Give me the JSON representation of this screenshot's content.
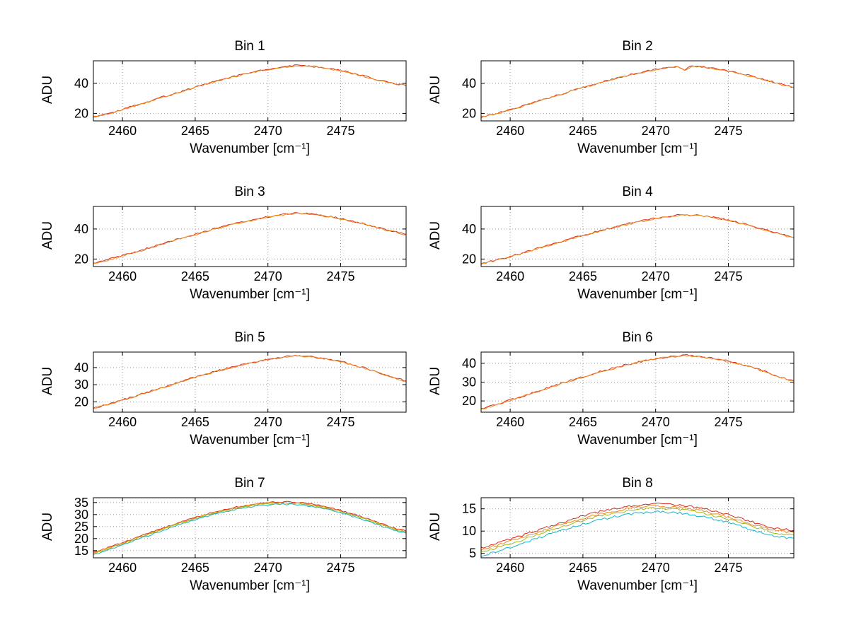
{
  "figure": {
    "background": "#ffffff",
    "grid_style": "dotted",
    "axis_color": "#000000",
    "grid_color": "#999999"
  },
  "chart_data": [
    {
      "type": "line",
      "title": "Bin 1",
      "xlabel": "Wavenumber [cm⁻¹]",
      "ylabel": "ADU",
      "xlim": [
        2458,
        2479.5
      ],
      "ylim": [
        15,
        55
      ],
      "x_ticks": [
        2460,
        2465,
        2470,
        2475
      ],
      "y_ticks": [
        20,
        40
      ],
      "grid": true,
      "legend": "none",
      "seed": 1,
      "noise": 0.55,
      "x_start": 2458,
      "x_step": 0.5,
      "base": [
        17.6,
        18.9,
        19.6,
        21.2,
        22.5,
        24.1,
        25.4,
        27.0,
        28.6,
        30.1,
        31.4,
        32.9,
        34.5,
        35.9,
        37.4,
        38.8,
        40.3,
        41.6,
        42.8,
        44.1,
        45.3,
        46.3,
        47.5,
        48.4,
        49.4,
        50.1,
        50.9,
        51.4,
        51.9,
        51.6,
        51.2,
        50.7,
        50.1,
        49.3,
        48.5,
        47.4,
        46.2,
        45.0,
        43.7,
        42.4,
        41.2,
        40.1,
        39.2,
        38.4
      ],
      "series": [
        {
          "name": "trace-red",
          "color": "#d42a1e",
          "offset": 0.12
        },
        {
          "name": "trace-orange",
          "color": "#ee8a1c",
          "offset": -0.12
        }
      ]
    },
    {
      "type": "line",
      "title": "Bin 2",
      "xlabel": "Wavenumber [cm⁻¹]",
      "ylabel": "ADU",
      "xlim": [
        2458,
        2479.5
      ],
      "ylim": [
        15,
        55
      ],
      "x_ticks": [
        2460,
        2465,
        2470,
        2475
      ],
      "y_ticks": [
        20,
        40
      ],
      "grid": true,
      "legend": "none",
      "seed": 2,
      "noise": 0.55,
      "x_start": 2458,
      "x_step": 0.5,
      "base": [
        17.3,
        18.5,
        19.8,
        21.0,
        22.4,
        23.9,
        25.3,
        26.8,
        28.3,
        29.8,
        31.2,
        32.7,
        34.2,
        35.7,
        37.1,
        38.5,
        39.9,
        41.3,
        42.6,
        43.9,
        45.0,
        46.2,
        47.2,
        48.2,
        49.2,
        50.0,
        50.8,
        51.3,
        48.9,
        51.4,
        51.0,
        50.4,
        49.8,
        49.0,
        48.1,
        47.1,
        46.0,
        44.8,
        43.5,
        42.2,
        40.9,
        39.6,
        38.3,
        37.2
      ],
      "series": [
        {
          "name": "trace-red",
          "color": "#d42a1e",
          "offset": 0.12
        },
        {
          "name": "trace-orange",
          "color": "#ee8a1c",
          "offset": -0.12
        }
      ]
    },
    {
      "type": "line",
      "title": "Bin 3",
      "xlabel": "Wavenumber [cm⁻¹]",
      "ylabel": "ADU",
      "xlim": [
        2458,
        2479.5
      ],
      "ylim": [
        15,
        55
      ],
      "x_ticks": [
        2460,
        2465,
        2470,
        2475
      ],
      "y_ticks": [
        20,
        40
      ],
      "grid": true,
      "legend": "none",
      "seed": 3,
      "noise": 0.55,
      "x_start": 2458,
      "x_step": 0.5,
      "base": [
        17.0,
        18.2,
        19.5,
        20.8,
        22.1,
        23.5,
        24.9,
        26.4,
        27.9,
        29.3,
        30.7,
        32.1,
        33.6,
        35.0,
        36.4,
        37.7,
        39.1,
        40.4,
        41.7,
        42.9,
        44.0,
        45.1,
        46.2,
        47.1,
        48.0,
        48.8,
        49.5,
        50.1,
        50.4,
        50.2,
        49.8,
        49.3,
        48.6,
        47.8,
        46.9,
        45.9,
        44.7,
        43.5,
        42.3,
        41.0,
        39.8,
        38.6,
        37.4,
        36.3
      ],
      "series": [
        {
          "name": "trace-red",
          "color": "#d42a1e",
          "offset": 0.12
        },
        {
          "name": "trace-orange",
          "color": "#ee8a1c",
          "offset": -0.12
        }
      ]
    },
    {
      "type": "line",
      "title": "Bin 4",
      "xlabel": "Wavenumber [cm⁻¹]",
      "ylabel": "ADU",
      "xlim": [
        2458,
        2479.5
      ],
      "ylim": [
        15,
        55
      ],
      "x_ticks": [
        2460,
        2465,
        2470,
        2475
      ],
      "y_ticks": [
        20,
        40
      ],
      "grid": true,
      "legend": "none",
      "seed": 4,
      "noise": 0.6,
      "x_start": 2458,
      "x_step": 0.5,
      "base": [
        16.6,
        17.8,
        19.0,
        20.3,
        21.6,
        23.0,
        24.4,
        25.8,
        27.3,
        28.7,
        30.1,
        31.5,
        32.9,
        34.3,
        35.7,
        37.0,
        38.3,
        39.6,
        40.8,
        42.0,
        43.1,
        44.2,
        45.2,
        46.1,
        47.0,
        47.8,
        48.5,
        49.0,
        49.4,
        49.2,
        48.8,
        48.3,
        47.6,
        46.7,
        45.7,
        44.6,
        43.4,
        42.1,
        40.8,
        39.4,
        38.0,
        36.7,
        35.4,
        34.3
      ],
      "series": [
        {
          "name": "trace-red",
          "color": "#d42a1e",
          "offset": 0.12
        },
        {
          "name": "trace-orange",
          "color": "#ee8a1c",
          "offset": -0.12
        }
      ]
    },
    {
      "type": "line",
      "title": "Bin 5",
      "xlabel": "Wavenumber [cm⁻¹]",
      "ylabel": "ADU",
      "xlim": [
        2458,
        2479.5
      ],
      "ylim": [
        14,
        49
      ],
      "x_ticks": [
        2460,
        2465,
        2470,
        2475
      ],
      "y_ticks": [
        20,
        30,
        40
      ],
      "grid": true,
      "legend": "none",
      "seed": 5,
      "noise": 0.5,
      "x_start": 2458,
      "x_step": 0.5,
      "base": [
        16.2,
        17.3,
        18.5,
        19.7,
        21.0,
        22.3,
        23.6,
        25.0,
        26.3,
        27.7,
        29.0,
        30.4,
        31.7,
        33.0,
        34.3,
        35.5,
        36.7,
        37.9,
        39.0,
        40.1,
        41.1,
        42.1,
        43.0,
        43.9,
        44.7,
        45.4,
        46.0,
        46.5,
        46.8,
        46.6,
        46.2,
        45.7,
        45.0,
        44.2,
        43.3,
        42.3,
        41.2,
        40.0,
        38.7,
        37.4,
        36.0,
        34.6,
        33.3,
        32.1
      ],
      "series": [
        {
          "name": "trace-red",
          "color": "#d42a1e",
          "offset": 0.1
        },
        {
          "name": "trace-orange",
          "color": "#ee8a1c",
          "offset": -0.1
        }
      ]
    },
    {
      "type": "line",
      "title": "Bin 6",
      "xlabel": "Wavenumber [cm⁻¹]",
      "ylabel": "ADU",
      "xlim": [
        2458,
        2479.5
      ],
      "ylim": [
        14,
        46
      ],
      "x_ticks": [
        2460,
        2465,
        2470,
        2475
      ],
      "y_ticks": [
        20,
        30,
        40
      ],
      "grid": true,
      "legend": "none",
      "seed": 6,
      "noise": 0.5,
      "x_start": 2458,
      "x_step": 0.5,
      "base": [
        15.7,
        16.8,
        17.9,
        19.1,
        20.3,
        21.5,
        22.8,
        24.0,
        25.3,
        26.6,
        27.9,
        29.1,
        30.4,
        31.6,
        32.8,
        34.0,
        35.1,
        36.2,
        37.2,
        38.2,
        39.2,
        40.1,
        40.9,
        41.7,
        42.4,
        43.0,
        43.5,
        43.9,
        44.2,
        44.0,
        43.6,
        43.1,
        42.5,
        41.8,
        41.0,
        40.1,
        39.1,
        38.0,
        36.8,
        35.6,
        34.3,
        33.0,
        31.7,
        30.6
      ],
      "series": [
        {
          "name": "trace-red",
          "color": "#d42a1e",
          "offset": 0.1
        },
        {
          "name": "trace-orange",
          "color": "#ee8a1c",
          "offset": -0.1
        }
      ]
    },
    {
      "type": "line",
      "title": "Bin 7",
      "xlabel": "Wavenumber [cm⁻¹]",
      "ylabel": "ADU",
      "xlim": [
        2458,
        2479.5
      ],
      "ylim": [
        12,
        37
      ],
      "x_ticks": [
        2460,
        2465,
        2470,
        2475
      ],
      "y_ticks": [
        15,
        20,
        25,
        30,
        35
      ],
      "grid": true,
      "legend": "none",
      "seed": 7,
      "noise": 0.3,
      "x_start": 2458,
      "x_step": 0.5,
      "base": [
        13.8,
        14.7,
        15.7,
        16.7,
        17.8,
        18.9,
        20.0,
        21.1,
        22.2,
        23.3,
        24.4,
        25.4,
        26.4,
        27.4,
        28.3,
        29.2,
        30.0,
        30.8,
        31.5,
        32.2,
        32.8,
        33.3,
        33.8,
        34.2,
        34.5,
        34.7,
        34.8,
        34.7,
        34.5,
        34.2,
        33.8,
        33.3,
        32.7,
        32.0,
        31.2,
        30.3,
        29.4,
        28.4,
        27.4,
        26.3,
        25.3,
        24.3,
        23.4,
        22.6
      ],
      "series": [
        {
          "name": "trace-red",
          "color": "#d42a1e",
          "offset": 0.5
        },
        {
          "name": "trace-orange",
          "color": "#ee8a1c",
          "offset": 0.25
        },
        {
          "name": "trace-green",
          "color": "#a3b818",
          "offset": 0.0
        },
        {
          "name": "trace-cyan",
          "color": "#19b2c8",
          "offset": -0.45
        }
      ]
    },
    {
      "type": "line",
      "title": "Bin 8",
      "xlabel": "Wavenumber [cm⁻¹]",
      "ylabel": "ADU",
      "xlim": [
        2458,
        2479.5
      ],
      "ylim": [
        4,
        17.5
      ],
      "x_ticks": [
        2460,
        2465,
        2470,
        2475
      ],
      "y_ticks": [
        5,
        10,
        15
      ],
      "grid": true,
      "legend": "none",
      "seed": 8,
      "noise": 0.25,
      "x_start": 2458,
      "x_step": 0.5,
      "base": [
        5.3,
        5.7,
        6.2,
        6.7,
        7.2,
        7.7,
        8.2,
        8.8,
        9.3,
        9.9,
        10.4,
        10.9,
        11.4,
        11.9,
        12.4,
        12.8,
        13.2,
        13.6,
        13.9,
        14.2,
        14.5,
        14.7,
        14.9,
        15.0,
        15.1,
        15.1,
        15.0,
        14.9,
        14.7,
        14.5,
        14.2,
        13.9,
        13.5,
        13.1,
        12.7,
        12.2,
        11.7,
        11.2,
        10.7,
        10.3,
        9.8,
        9.5,
        9.3,
        9.2
      ],
      "series": [
        {
          "name": "trace-red",
          "color": "#d42a1e",
          "offset": 1.0
        },
        {
          "name": "trace-orange",
          "color": "#ee8a1c",
          "offset": 0.5
        },
        {
          "name": "trace-green",
          "color": "#a3b818",
          "offset": 0.0
        },
        {
          "name": "trace-cyan",
          "color": "#19b2c8",
          "offset": -0.8
        }
      ]
    }
  ]
}
